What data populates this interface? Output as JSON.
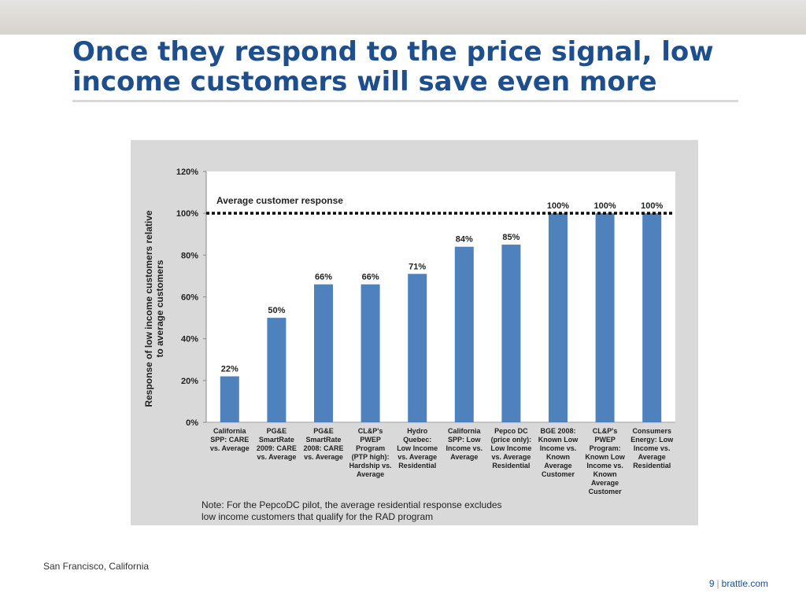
{
  "slide": {
    "title": "Once they respond to the price signal, low income customers will save even more",
    "footer_location": "San Francisco, California",
    "page_number": "9",
    "site": "brattle.com"
  },
  "colors": {
    "title": "#1f4e8c",
    "bar": "#4f81bd",
    "plot_bg": "#ffffff",
    "frame_bg": "#d9d9d9"
  },
  "chart_data": {
    "type": "bar",
    "title": "",
    "xlabel": "",
    "ylabel": "Response of low income customers relative to average customers",
    "ylim": [
      0,
      120
    ],
    "yticks": [
      "0%",
      "20%",
      "40%",
      "60%",
      "80%",
      "100%",
      "120%"
    ],
    "grid": false,
    "categories": [
      [
        "California",
        "SPP: CARE",
        "vs. Average"
      ],
      [
        "PG&E",
        "SmartRate",
        "2009: CARE",
        "vs. Average"
      ],
      [
        "PG&E",
        "SmartRate",
        "2008: CARE",
        "vs. Average"
      ],
      [
        "CL&P's",
        "PWEP",
        "Program",
        "(PTP high):",
        "Hardship vs.",
        "Average"
      ],
      [
        "Hydro",
        "Quebec:",
        "Low Income",
        "vs. Average",
        "Residential"
      ],
      [
        "California",
        "SPP: Low",
        "Income vs.",
        "Average"
      ],
      [
        "Pepco DC",
        "(price only):",
        "Low Income",
        "vs. Average",
        "Residential"
      ],
      [
        "BGE 2008:",
        "Known Low",
        "Income vs.",
        "Known",
        "Average",
        "Customer"
      ],
      [
        "CL&P's",
        "PWEP",
        "Program:",
        "Known Low",
        "Income vs.",
        "Known",
        "Average",
        "Customer"
      ],
      [
        "Consumers",
        "Energy: Low",
        "Income vs.",
        "Average",
        "Residential"
      ]
    ],
    "values": [
      22,
      50,
      66,
      66,
      71,
      84,
      85,
      100,
      100,
      100
    ],
    "data_labels": [
      "22%",
      "50%",
      "66%",
      "66%",
      "71%",
      "84%",
      "85%",
      "100%",
      "100%",
      "100%"
    ],
    "reference_line": {
      "value": 100,
      "label": "Average customer response",
      "style": "dotted"
    },
    "note": [
      "Note: For the PepcoDC pilot, the average residential response excludes",
      "low income customers that qualify for the RAD program"
    ]
  }
}
